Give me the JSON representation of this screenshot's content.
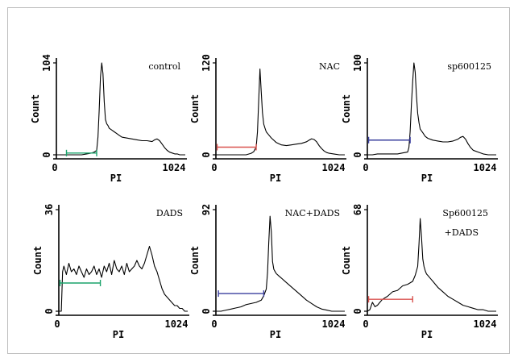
{
  "chart_data": [
    {
      "type": "line",
      "title": "control",
      "xlabel": "PI",
      "ylabel": "Count",
      "xlim": [
        0,
        1024
      ],
      "ylim": [
        0,
        104
      ],
      "x_ticks": [
        "0",
        "1024"
      ],
      "y_ticks": [
        "0",
        "104"
      ],
      "gate": {
        "from": 80,
        "to": 320,
        "level": 2,
        "color": "#1aa36b"
      },
      "x": [
        0,
        40,
        80,
        120,
        160,
        200,
        240,
        280,
        300,
        320,
        330,
        340,
        350,
        360,
        370,
        380,
        390,
        400,
        410,
        420,
        440,
        460,
        480,
        500,
        520,
        560,
        600,
        640,
        680,
        720,
        760,
        780,
        800,
        820,
        840,
        860,
        880,
        900,
        920,
        940,
        960,
        980,
        1000,
        1024
      ],
      "values": [
        0,
        0,
        0,
        0,
        0,
        0,
        1,
        2,
        3,
        5,
        20,
        50,
        88,
        104,
        92,
        60,
        40,
        35,
        33,
        30,
        28,
        26,
        24,
        22,
        20,
        19,
        18,
        17,
        16,
        16,
        15,
        17,
        18,
        16,
        12,
        8,
        5,
        3,
        2,
        1,
        1,
        0,
        0,
        0
      ]
    },
    {
      "type": "line",
      "title": "NAC",
      "xlabel": "PI",
      "ylabel": "Count",
      "xlim": [
        0,
        1024
      ],
      "ylim": [
        0,
        120
      ],
      "x_ticks": [
        "0",
        "1024"
      ],
      "y_ticks": [
        "0",
        "120"
      ],
      "gate": {
        "from": 10,
        "to": 320,
        "level": 10,
        "color": "#d9534f"
      },
      "x": [
        0,
        40,
        80,
        120,
        160,
        200,
        240,
        280,
        300,
        320,
        330,
        340,
        350,
        360,
        370,
        380,
        390,
        400,
        420,
        440,
        480,
        520,
        560,
        600,
        640,
        680,
        720,
        740,
        760,
        780,
        800,
        820,
        840,
        860,
        880,
        900,
        940,
        980,
        1024
      ],
      "values": [
        0,
        0,
        0,
        0,
        0,
        0,
        0,
        2,
        4,
        10,
        30,
        70,
        112,
        82,
        55,
        40,
        35,
        30,
        26,
        22,
        16,
        13,
        12,
        13,
        14,
        15,
        17,
        19,
        21,
        20,
        17,
        12,
        8,
        5,
        3,
        2,
        1,
        0,
        0
      ]
    },
    {
      "type": "line",
      "title": "sp600125",
      "xlabel": "PI",
      "ylabel": "Count",
      "xlim": [
        0,
        1024
      ],
      "ylim": [
        0,
        100
      ],
      "x_ticks": [
        "0",
        "1024"
      ],
      "y_ticks": [
        "0",
        "100"
      ],
      "gate": {
        "from": 10,
        "to": 340,
        "level": 16,
        "color": "#3a3f9e"
      },
      "x": [
        0,
        40,
        80,
        120,
        160,
        200,
        240,
        280,
        320,
        330,
        340,
        350,
        360,
        370,
        380,
        390,
        400,
        410,
        420,
        440,
        460,
        480,
        520,
        560,
        600,
        640,
        680,
        720,
        740,
        760,
        780,
        800,
        820,
        840,
        880,
        920,
        960,
        1000,
        1024
      ],
      "values": [
        0,
        0,
        1,
        1,
        1,
        1,
        1,
        2,
        3,
        8,
        25,
        55,
        80,
        100,
        90,
        65,
        45,
        35,
        28,
        24,
        20,
        18,
        16,
        15,
        14,
        14,
        15,
        17,
        19,
        20,
        17,
        12,
        8,
        5,
        3,
        1,
        0,
        0,
        0
      ]
    },
    {
      "type": "line",
      "title": "DADS",
      "xlabel": "PI",
      "ylabel": "Count",
      "xlim": [
        0,
        1024
      ],
      "ylim": [
        0,
        36
      ],
      "x_ticks": [
        "0",
        "1024"
      ],
      "y_ticks": [
        "0",
        "36"
      ],
      "gate": {
        "from": 10,
        "to": 330,
        "level": 10,
        "color": "#1aa36b"
      },
      "x": [
        0,
        20,
        30,
        40,
        60,
        80,
        100,
        120,
        140,
        160,
        180,
        200,
        220,
        240,
        260,
        280,
        300,
        320,
        340,
        360,
        380,
        400,
        420,
        440,
        460,
        480,
        500,
        520,
        540,
        560,
        580,
        600,
        620,
        640,
        660,
        680,
        700,
        720,
        740,
        760,
        780,
        800,
        820,
        840,
        860,
        880,
        900,
        920,
        940,
        960,
        980,
        1000,
        1024
      ],
      "values": [
        0,
        0,
        14,
        16,
        13,
        17,
        14,
        15,
        13,
        16,
        14,
        12,
        15,
        13,
        14,
        16,
        13,
        15,
        12,
        16,
        14,
        17,
        13,
        18,
        15,
        14,
        16,
        13,
        17,
        14,
        15,
        16,
        18,
        16,
        15,
        17,
        20,
        23,
        20,
        16,
        14,
        11,
        8,
        6,
        5,
        4,
        3,
        2,
        2,
        1,
        1,
        0,
        0
      ]
    },
    {
      "type": "line",
      "title": "NAC+DADS",
      "xlabel": "PI",
      "ylabel": "Count",
      "xlim": [
        0,
        1024
      ],
      "ylim": [
        0,
        92
      ],
      "x_ticks": [
        "0",
        "1024"
      ],
      "y_ticks": [
        "0",
        "92"
      ],
      "gate": {
        "from": 20,
        "to": 380,
        "level": 16,
        "color": "#3a3f9e"
      },
      "x": [
        0,
        40,
        80,
        120,
        160,
        200,
        240,
        280,
        320,
        360,
        380,
        400,
        410,
        420,
        430,
        440,
        450,
        460,
        470,
        480,
        500,
        520,
        540,
        560,
        600,
        640,
        680,
        720,
        760,
        800,
        840,
        880,
        920,
        960,
        1000,
        1024
      ],
      "values": [
        0,
        0,
        1,
        2,
        3,
        4,
        6,
        7,
        8,
        10,
        14,
        20,
        35,
        62,
        86,
        72,
        45,
        38,
        36,
        34,
        32,
        30,
        28,
        26,
        22,
        18,
        14,
        10,
        7,
        4,
        2,
        1,
        0,
        0,
        0,
        0
      ]
    },
    {
      "type": "line",
      "title": "Sp600125 +DADS",
      "xlabel": "PI",
      "ylabel": "Count",
      "xlim": [
        0,
        1024
      ],
      "ylim": [
        0,
        68
      ],
      "x_ticks": [
        "0",
        "1024"
      ],
      "y_ticks": [
        "0",
        "68"
      ],
      "gate": {
        "from": 10,
        "to": 360,
        "level": 8,
        "color": "#d9534f"
      },
      "x": [
        0,
        20,
        40,
        60,
        80,
        100,
        120,
        160,
        200,
        240,
        280,
        320,
        360,
        380,
        400,
        410,
        420,
        430,
        440,
        450,
        460,
        470,
        480,
        500,
        520,
        540,
        560,
        600,
        640,
        680,
        720,
        760,
        800,
        840,
        880,
        920,
        960,
        1000,
        1024
      ],
      "values": [
        0,
        1,
        6,
        3,
        4,
        6,
        8,
        10,
        13,
        14,
        17,
        18,
        20,
        24,
        30,
        45,
        62,
        50,
        35,
        30,
        27,
        25,
        24,
        22,
        20,
        18,
        16,
        13,
        10,
        8,
        6,
        4,
        3,
        2,
        1,
        1,
        0,
        0,
        0
      ]
    }
  ]
}
